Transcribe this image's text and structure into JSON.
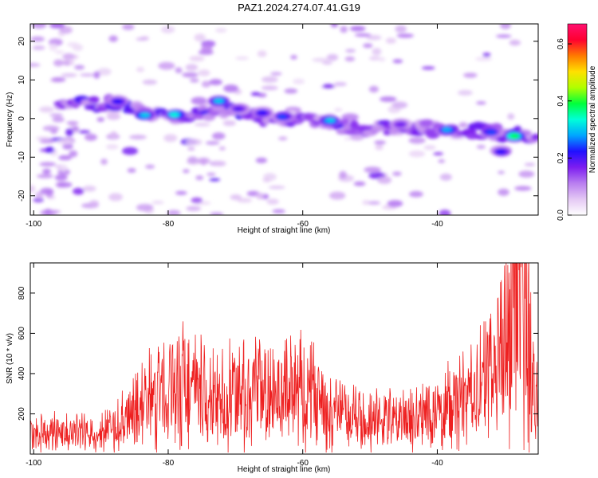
{
  "title": "PAZ1.2024.274.07.41.G19",
  "chart_data": [
    {
      "type": "heatmap",
      "xlabel": "Height of straight line (km)",
      "ylabel": "Frequency (Hz)",
      "xlim": [
        -100.5,
        -25
      ],
      "ylim": [
        -25,
        24.5
      ],
      "xticks": [
        -100,
        -80,
        -60,
        -40
      ],
      "yticks": [
        -20,
        -10,
        0,
        10,
        20
      ],
      "colorbar": {
        "label": "Normalized spectral amplitude",
        "range": [
          0,
          0.67
        ],
        "ticks": [
          0.0,
          0.2,
          0.4,
          0.6
        ],
        "colors": [
          "#ffffff",
          "#e4c8f4",
          "#b97ef0",
          "#7d1df0",
          "#2010ff",
          "#00a6ff",
          "#00ffd8",
          "#00ff3c",
          "#b0ff00",
          "#ffe000",
          "#ff7a00",
          "#ff0030",
          "#ff1070"
        ]
      },
      "ridge": {
        "x": [
          -96,
          -92,
          -88,
          -84,
          -80,
          -76,
          -72,
          -68,
          -64,
          -60,
          -56,
          -52,
          -48,
          -44,
          -40,
          -36,
          -32,
          -28,
          -25
        ],
        "y": [
          3.5,
          4,
          4,
          2,
          0.5,
          1.5,
          2,
          1,
          0,
          -0.5,
          -1.5,
          -2.5,
          -2.5,
          -2,
          -3,
          -3,
          -3.5,
          -4.5,
          -4.5
        ]
      },
      "peaks": [
        {
          "x": -87.5,
          "y": 4.5,
          "value": 0.25
        },
        {
          "x": -83.5,
          "y": 0.8,
          "value": 0.35
        },
        {
          "x": -79,
          "y": 1,
          "value": 0.38
        },
        {
          "x": -72.5,
          "y": 4.5,
          "value": 0.35
        },
        {
          "x": -69.5,
          "y": 2.5,
          "value": 0.22
        },
        {
          "x": -66,
          "y": 1.5,
          "value": 0.25
        },
        {
          "x": -63,
          "y": 0.5,
          "value": 0.28
        },
        {
          "x": -56,
          "y": -0.5,
          "value": 0.35
        },
        {
          "x": -45.5,
          "y": -1.5,
          "value": 0.2
        },
        {
          "x": -38.5,
          "y": -3,
          "value": 0.33
        },
        {
          "x": -32,
          "y": -3.5,
          "value": 0.28
        },
        {
          "x": -28.5,
          "y": -4.5,
          "value": 0.45
        },
        {
          "x": -30.5,
          "y": -8.5,
          "value": 0.25
        }
      ]
    },
    {
      "type": "line",
      "xlabel": "Height of straight line (km)",
      "ylabel": "SNR (10 * v/v)",
      "xlim": [
        -100.5,
        -25
      ],
      "ylim": [
        0,
        950
      ],
      "xticks": [
        -100,
        -80,
        -60,
        -40
      ],
      "yticks": [
        200,
        400,
        600,
        800
      ],
      "series": [
        {
          "color": "#ee2020",
          "x": [
            -100.5,
            -98,
            -96,
            -94,
            -92,
            -90,
            -88,
            -86,
            -84,
            -82,
            -80,
            -78,
            -76,
            -74,
            -72,
            -70,
            -68,
            -66,
            -64,
            -62,
            -60,
            -58,
            -56,
            -54,
            -52,
            -50,
            -48,
            -46,
            -44,
            -42,
            -40,
            -38,
            -36,
            -34,
            -32,
            -30,
            -29,
            -28,
            -27,
            -26,
            -25
          ],
          "y": [
            100,
            110,
            100,
            105,
            105,
            110,
            130,
            170,
            240,
            300,
            340,
            360,
            320,
            260,
            260,
            300,
            320,
            280,
            280,
            330,
            330,
            300,
            230,
            190,
            180,
            170,
            165,
            170,
            175,
            200,
            210,
            240,
            270,
            320,
            380,
            580,
            700,
            800,
            700,
            400,
            260
          ]
        }
      ]
    }
  ]
}
